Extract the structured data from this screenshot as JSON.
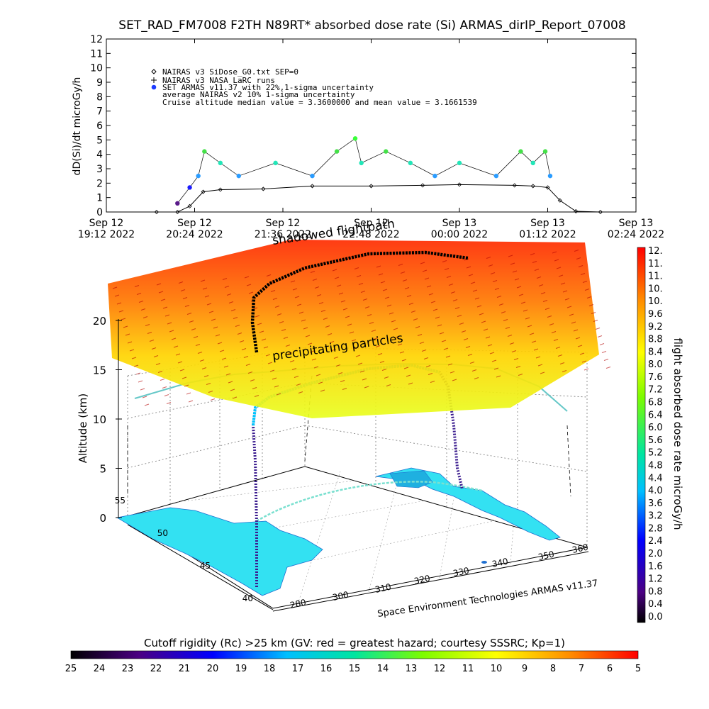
{
  "header": {
    "title": "SET_RAD_FM7008  F2TH N89RT* absorbed dose rate (Si) ARMAS_dirIP_Report_07008"
  },
  "timeseries": {
    "ylabel": "dD(Si)/dt microGy/h",
    "ylim": [
      0,
      12
    ],
    "yticks": [
      "0",
      "1",
      "2",
      "3",
      "4",
      "5",
      "6",
      "7",
      "8",
      "9",
      "10",
      "11",
      "12"
    ],
    "xtick_top": [
      "Sep 12",
      "Sep 12",
      "Sep 12",
      "Sep 12",
      "Sep 13",
      "Sep 13",
      "Sep 13"
    ],
    "xtick_bottom": [
      "19:12 2022",
      "20:24 2022",
      "21:36 2022",
      "22:48 2022",
      "00:00 2022",
      "01:12 2022",
      "02:24 2022"
    ],
    "legend": [
      "NAIRAS v3 SiDose_G0.txt SEP=0",
      "NAIRAS v3 NASA LaRC runs",
      "SET ARMAS v11.37 with 22%,1-sigma uncertainty",
      "average NAIRAS v2 10% 1-sigma uncertainty",
      "Cruise altitude median value = 3.3600000 and mean value = 3.1661539"
    ]
  },
  "chart_data": [
    {
      "type": "scatter",
      "title": "SET_RAD_FM7008  F2TH N89RT* absorbed dose rate (Si) ARMAS_dirIP_Report_07008",
      "ylabel": "dD(Si)/dt microGy/h",
      "ylim": [
        0,
        12
      ],
      "xlim": [
        "2022-09-12 19:12",
        "2022-09-13 02:24"
      ],
      "series": [
        {
          "name": "NAIRAS v3 SiDose_G0.txt SEP=0",
          "color": "#000000",
          "x": [
            "2022-09-12 19:53",
            "2022-09-12 20:10",
            "2022-09-12 20:20",
            "2022-09-12 20:31",
            "2022-09-12 20:45",
            "2022-09-12 21:20",
            "2022-09-12 22:00",
            "2022-09-12 22:48",
            "2022-09-12 23:30",
            "2022-09-13 00:00",
            "2022-09-13 00:45",
            "2022-09-13 01:00",
            "2022-09-13 01:12",
            "2022-09-13 01:22",
            "2022-09-13 01:35",
            "2022-09-13 01:55"
          ],
          "y": [
            0,
            0,
            0.4,
            1.4,
            1.55,
            1.6,
            1.8,
            1.8,
            1.85,
            1.9,
            1.85,
            1.8,
            1.7,
            0.8,
            0.05,
            0
          ]
        },
        {
          "name": "SET ARMAS v11.37 with 22%,1-sigma uncertainty",
          "color": "#1e90ff",
          "x": [
            "2022-09-12 20:10",
            "2022-09-12 20:20",
            "2022-09-12 20:27",
            "2022-09-12 20:32",
            "2022-09-12 20:45",
            "2022-09-12 21:00",
            "2022-09-12 21:30",
            "2022-09-12 22:00",
            "2022-09-12 22:20",
            "2022-09-12 22:35",
            "2022-09-12 22:40",
            "2022-09-12 23:00",
            "2022-09-12 23:20",
            "2022-09-12 23:40",
            "2022-09-13 00:00",
            "2022-09-13 00:30",
            "2022-09-13 00:50",
            "2022-09-13 01:00",
            "2022-09-13 01:10",
            "2022-09-13 01:14"
          ],
          "y": [
            0.6,
            1.7,
            2.5,
            4.2,
            3.4,
            2.5,
            3.4,
            2.5,
            4.2,
            5.1,
            3.4,
            4.2,
            3.4,
            2.5,
            3.4,
            2.5,
            4.2,
            3.4,
            4.2,
            2.5
          ]
        }
      ]
    },
    {
      "type": "3d-flight-track",
      "zlabel": "Altitude (km)",
      "zlim": [
        0,
        20
      ],
      "zticks": [
        "0",
        "5",
        "10",
        "15",
        "20"
      ],
      "lat_ticks": [
        "40",
        "45",
        "50",
        "55"
      ],
      "lon_ticks": [
        "280",
        "300",
        "310",
        "320",
        "330",
        "340",
        "350",
        "360"
      ],
      "annotations": [
        "precipitating particles",
        "shadowed flightpath",
        "Space Environment Technologies ARMAS v11.37"
      ],
      "colorbar": {
        "label": "flight absorbed dose rate microGy/h",
        "ticks": [
          "12.",
          "11.",
          "11.",
          "10.",
          "10.",
          "9.6",
          "9.2",
          "8.8",
          "8.4",
          "8.0",
          "7.6",
          "7.2",
          "6.8",
          "6.4",
          "6.0",
          "5.6",
          "5.2",
          "4.8",
          "4.4",
          "4.0",
          "3.6",
          "3.2",
          "2.8",
          "2.4",
          "2.0",
          "1.6",
          "1.2",
          "0.8",
          "0.4",
          "0.0"
        ]
      },
      "rigidity_bar": {
        "label": "Cutoff rigidity (Rc) >25 km (GV: red = greatest hazard; courtesy SSSRC; Kp=1)",
        "ticks": [
          "25",
          "24",
          "23",
          "22",
          "21",
          "20",
          "19",
          "18",
          "17",
          "16",
          "15",
          "14",
          "13",
          "12",
          "11",
          "10",
          "9",
          "8",
          "7",
          "6",
          "5"
        ]
      }
    }
  ]
}
